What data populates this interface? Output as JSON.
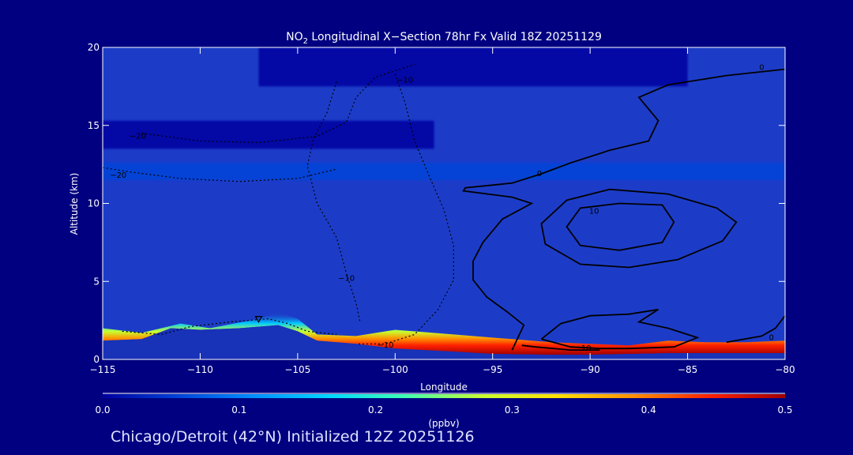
{
  "colors": {
    "background": "#000080",
    "plot_fill": "#1c3cc8",
    "frame": "#ffffff",
    "contour": "#000000"
  },
  "bottom_title": "Chicago/Detroit (42°N) Initialized 12Z 20251126",
  "chart_data": {
    "type": "heatmap",
    "title": {
      "prefix": "NO",
      "subscript": "2",
      "suffix": " Longitudinal X−Section 78hr  Fx Valid 18Z 20251129"
    },
    "xlabel": "Longitude",
    "ylabel": "Altitude (km)",
    "xlim": [
      -115,
      -80
    ],
    "ylim": [
      0,
      20
    ],
    "x_ticks": [
      -115,
      -110,
      -105,
      -100,
      -95,
      -90,
      -85,
      -80
    ],
    "x_tick_labels": [
      "−115",
      "−110",
      "−105",
      "−100",
      "−95",
      "−90",
      "−85",
      "−80"
    ],
    "y_ticks": [
      0,
      5,
      10,
      15,
      20
    ],
    "y_tick_labels": [
      "0",
      "5",
      "10",
      "15",
      "20"
    ],
    "colorbar": {
      "label": "(ppbv)",
      "range": [
        0.0,
        0.5
      ],
      "ticks": [
        0.0,
        0.1,
        0.2,
        0.3,
        0.4,
        0.5
      ],
      "tick_labels": [
        "0.0",
        "0.1",
        "0.2",
        "0.3",
        "0.4",
        "0.5"
      ],
      "colors": [
        "#0000a0",
        "#0044d8",
        "#0090ff",
        "#00d8ff",
        "#40ffb0",
        "#c8ff30",
        "#ffe000",
        "#ff9000",
        "#ff2000",
        "#a00000"
      ]
    },
    "terrain": [
      {
        "lon": -115,
        "alt": 1.2
      },
      {
        "lon": -113,
        "alt": 1.3
      },
      {
        "lon": -111.5,
        "alt": 2.0
      },
      {
        "lon": -110,
        "alt": 1.9
      },
      {
        "lon": -108,
        "alt": 2.0
      },
      {
        "lon": -106,
        "alt": 2.2
      },
      {
        "lon": -105,
        "alt": 1.8
      },
      {
        "lon": -104,
        "alt": 1.2
      },
      {
        "lon": -102,
        "alt": 1.0
      },
      {
        "lon": -100,
        "alt": 0.7
      },
      {
        "lon": -97,
        "alt": 0.5
      },
      {
        "lon": -95,
        "alt": 0.35
      },
      {
        "lon": -92,
        "alt": 0.3
      },
      {
        "lon": -90,
        "alt": 0.3
      },
      {
        "lon": -88,
        "alt": 0.35
      },
      {
        "lon": -86,
        "alt": 0.4
      },
      {
        "lon": -84,
        "alt": 0.4
      },
      {
        "lon": -82,
        "alt": 0.4
      },
      {
        "lon": -80,
        "alt": 0.4
      }
    ],
    "boundary_layer_top": [
      {
        "lon": -115,
        "alt": 2.0
      },
      {
        "lon": -113,
        "alt": 1.7
      },
      {
        "lon": -111,
        "alt": 2.3
      },
      {
        "lon": -109.5,
        "alt": 2.0
      },
      {
        "lon": -107,
        "alt": 2.6
      },
      {
        "lon": -106,
        "alt": 3.0
      },
      {
        "lon": -105,
        "alt": 2.6
      },
      {
        "lon": -104,
        "alt": 1.6
      },
      {
        "lon": -102,
        "alt": 1.5
      },
      {
        "lon": -100,
        "alt": 1.9
      },
      {
        "lon": -97,
        "alt": 1.6
      },
      {
        "lon": -94,
        "alt": 1.3
      },
      {
        "lon": -92,
        "alt": 1.1
      },
      {
        "lon": -90,
        "alt": 1.0
      },
      {
        "lon": -88,
        "alt": 0.9
      },
      {
        "lon": -86,
        "alt": 1.2
      },
      {
        "lon": -84,
        "alt": 1.1
      },
      {
        "lon": -82,
        "alt": 1.1
      },
      {
        "lon": -80,
        "alt": 1.2
      }
    ],
    "bands": [
      {
        "lon_min": -115,
        "lon_max": -80,
        "alt_min": 11.5,
        "alt_max": 12.6,
        "value": 0.07
      },
      {
        "lon_min": -107,
        "lon_max": -85,
        "alt_min": 17.5,
        "alt_max": 20.0,
        "value": 0.02
      },
      {
        "lon_min": -115,
        "lon_max": -98,
        "alt_min": 13.5,
        "alt_max": 15.3,
        "value": 0.015
      }
    ],
    "contours": [
      {
        "label": "0",
        "dashed": false,
        "points": [
          [
            -80,
            18.6
          ],
          [
            -83,
            18.2
          ],
          [
            -86,
            17.6
          ],
          [
            -87.5,
            16.8
          ],
          [
            -86.5,
            15.3
          ],
          [
            -87,
            14.0
          ],
          [
            -89,
            13.4
          ],
          [
            -91,
            12.6
          ],
          [
            -92.5,
            11.9
          ],
          [
            -94,
            11.3
          ],
          [
            -96.4,
            11.0
          ],
          [
            -96.5,
            10.8
          ],
          [
            -94,
            10.4
          ],
          [
            -93,
            10.0
          ],
          [
            -94.5,
            9.0
          ],
          [
            -95.5,
            7.5
          ],
          [
            -96,
            6.3
          ],
          [
            -96,
            5.1
          ],
          [
            -95.3,
            4.0
          ],
          [
            -94.2,
            3.0
          ],
          [
            -93.4,
            2.2
          ],
          [
            -93.7,
            1.4
          ],
          [
            -94,
            0.6
          ]
        ]
      },
      {
        "label": "0",
        "dashed": false,
        "points": [
          [
            -80,
            2.8
          ],
          [
            -80.5,
            2.0
          ],
          [
            -81.2,
            1.5
          ],
          [
            -83,
            1.1
          ]
        ]
      },
      {
        "label": "10",
        "dashed": false,
        "points": [
          [
            -88.5,
            10.0
          ],
          [
            -86.3,
            9.9
          ],
          [
            -85.7,
            8.8
          ],
          [
            -86.3,
            7.5
          ],
          [
            -88.5,
            7.0
          ],
          [
            -90.5,
            7.3
          ],
          [
            -91.2,
            8.5
          ],
          [
            -90.5,
            9.7
          ],
          [
            -88.5,
            10.0
          ]
        ]
      },
      {
        "label": "",
        "dashed": false,
        "points": [
          [
            -89,
            10.9
          ],
          [
            -86,
            10.6
          ],
          [
            -83.5,
            9.7
          ],
          [
            -82.5,
            8.8
          ],
          [
            -83.2,
            7.6
          ],
          [
            -85.5,
            6.4
          ],
          [
            -88,
            5.9
          ],
          [
            -90.5,
            6.1
          ],
          [
            -92.3,
            7.4
          ],
          [
            -92.5,
            8.7
          ],
          [
            -91.2,
            10.2
          ],
          [
            -89,
            10.9
          ]
        ]
      },
      {
        "label": "10",
        "dashed": false,
        "points": [
          [
            -92.5,
            1.3
          ],
          [
            -91.5,
            2.3
          ],
          [
            -90,
            2.8
          ],
          [
            -88,
            2.9
          ],
          [
            -86.5,
            3.2
          ],
          [
            -87.5,
            2.4
          ],
          [
            -86,
            2.0
          ],
          [
            -84.5,
            1.4
          ],
          [
            -85.7,
            0.8
          ],
          [
            -88,
            0.7
          ],
          [
            -89.5,
            0.7
          ],
          [
            -91,
            0.8
          ],
          [
            -92.5,
            1.3
          ]
        ]
      },
      {
        "label": "",
        "dashed": false,
        "points": [
          [
            -93.5,
            0.9
          ],
          [
            -92.8,
            0.8
          ],
          [
            -91,
            0.6
          ],
          [
            -89.5,
            0.6
          ]
        ]
      },
      {
        "label": "−20",
        "dashed": true,
        "points": [
          [
            -115,
            12.3
          ],
          [
            -113.5,
            12.0
          ],
          [
            -111,
            11.6
          ],
          [
            -108,
            11.4
          ],
          [
            -105,
            11.6
          ],
          [
            -103,
            12.2
          ]
        ]
      },
      {
        "label": "−20",
        "dashed": true,
        "points": [
          [
            -113,
            14.5
          ],
          [
            -110,
            14.0
          ],
          [
            -107,
            13.9
          ],
          [
            -104,
            14.3
          ],
          [
            -102.5,
            15.2
          ],
          [
            -102,
            16.8
          ],
          [
            -101,
            18.1
          ],
          [
            -99,
            18.9
          ]
        ]
      },
      {
        "label": "−10",
        "dashed": true,
        "points": [
          [
            -103,
            17.8
          ],
          [
            -103.5,
            15.8
          ],
          [
            -104.2,
            14.1
          ],
          [
            -104.5,
            12.4
          ],
          [
            -104,
            10.0
          ],
          [
            -103,
            7.8
          ],
          [
            -102.5,
            5.5
          ],
          [
            -102,
            3.6
          ],
          [
            -101.8,
            2.4
          ]
        ]
      },
      {
        "label": "−10",
        "dashed": true,
        "points": [
          [
            -100,
            18.3
          ],
          [
            -99.5,
            16.5
          ],
          [
            -99,
            14.0
          ],
          [
            -98.2,
            11.6
          ],
          [
            -97.5,
            9.6
          ],
          [
            -97,
            7.3
          ],
          [
            -97,
            5.1
          ],
          [
            -97.8,
            3.2
          ],
          [
            -99,
            1.6
          ],
          [
            -100.5,
            1.0
          ],
          [
            -102,
            1.0
          ]
        ]
      },
      {
        "label": "",
        "dashed": true,
        "points": [
          [
            -114,
            1.8
          ],
          [
            -112,
            1.6
          ],
          [
            -110.5,
            2.1
          ],
          [
            -108.5,
            2.4
          ],
          [
            -106.5,
            2.6
          ],
          [
            -105.5,
            2.3
          ],
          [
            -104.5,
            1.8
          ],
          [
            -103,
            1.6
          ]
        ]
      }
    ],
    "contour_labels": [
      {
        "text": "0",
        "lon": -81.2,
        "alt": 18.7
      },
      {
        "text": "0",
        "lon": -92.6,
        "alt": 11.9
      },
      {
        "text": "0",
        "lon": -80.7,
        "alt": 1.4
      },
      {
        "text": "10",
        "lon": -89.8,
        "alt": 9.5
      },
      {
        "text": "10",
        "lon": -90.2,
        "alt": 0.7
      },
      {
        "text": "−20",
        "lon": -114.2,
        "alt": 11.8
      },
      {
        "text": "−20",
        "lon": -113.2,
        "alt": 14.3
      },
      {
        "text": "−10",
        "lon": -102.5,
        "alt": 5.2
      },
      {
        "text": "−10",
        "lon": -99.5,
        "alt": 17.9
      },
      {
        "text": "−10",
        "lon": -100.5,
        "alt": 0.9
      }
    ],
    "marker": {
      "symbol": "triangle-down",
      "lon": -107,
      "alt": 2.5
    }
  }
}
